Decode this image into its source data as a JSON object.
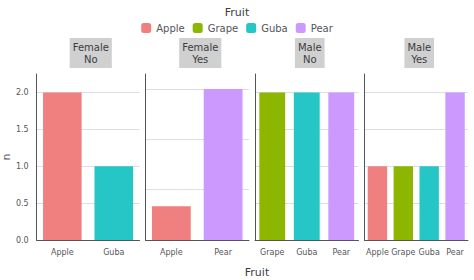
{
  "chart_data": [
    {
      "type": "bar",
      "title": "Female\nNo",
      "xlabel": "Fruit",
      "ylabel": "n",
      "legend": "top",
      "legend_title": "Fruit",
      "legend_labels": [
        "Apple",
        "Grape",
        "Guba",
        "Pear"
      ],
      "legend_colors": [
        "#F08080",
        "#8DB600",
        "#26C6C6",
        "#CC99FF"
      ],
      "categories": [
        "Apple",
        "Guba"
      ],
      "values": [
        2,
        1
      ],
      "colors": [
        "#F08080",
        "#26C6C6"
      ],
      "ylim": [
        0,
        2.25
      ],
      "yticks": [
        {
          "value": 0,
          "label": "0.0"
        },
        0.5,
        {
          "value": 1,
          "label": "1.0"
        },
        1.5,
        {
          "value": 2,
          "label": "2.0"
        }
      ],
      "grid": true
    },
    {
      "type": "bar",
      "title": "Female\nYes",
      "categories": [
        "Apple",
        "Pear"
      ],
      "values": [
        0.67,
        3
      ],
      "colors": [
        "#F08080",
        "#CC99FF"
      ],
      "ylim": [
        0,
        3.3
      ],
      "yticks": [
        0,
        1,
        2,
        3
      ],
      "grid": true,
      "tick_labels": "x"
    },
    {
      "type": "bar",
      "title": "Male\nNo",
      "categories": [
        "Grape",
        "Guba",
        "Pear"
      ],
      "values": [
        2,
        2,
        2
      ],
      "colors": [
        "#8DB600",
        "#26C6C6",
        "#CC99FF"
      ],
      "ylim": [
        0,
        2.25
      ],
      "yticks": [
        0,
        0.5,
        1,
        1.5,
        2
      ],
      "grid": true,
      "tick_labels": "x"
    },
    {
      "type": "bar",
      "title": "Male\nYes",
      "categories": [
        "Apple",
        "Grape",
        "Guba",
        "Pear"
      ],
      "values": [
        1,
        1,
        1,
        2
      ],
      "colors": [
        "#F08080",
        "#8DB600",
        "#26C6C6",
        "#CC99FF"
      ],
      "ylim": [
        0,
        2.25
      ],
      "yticks": [
        0,
        0.5,
        1,
        1.5,
        2
      ],
      "grid": true,
      "tick_labels": "x"
    }
  ]
}
